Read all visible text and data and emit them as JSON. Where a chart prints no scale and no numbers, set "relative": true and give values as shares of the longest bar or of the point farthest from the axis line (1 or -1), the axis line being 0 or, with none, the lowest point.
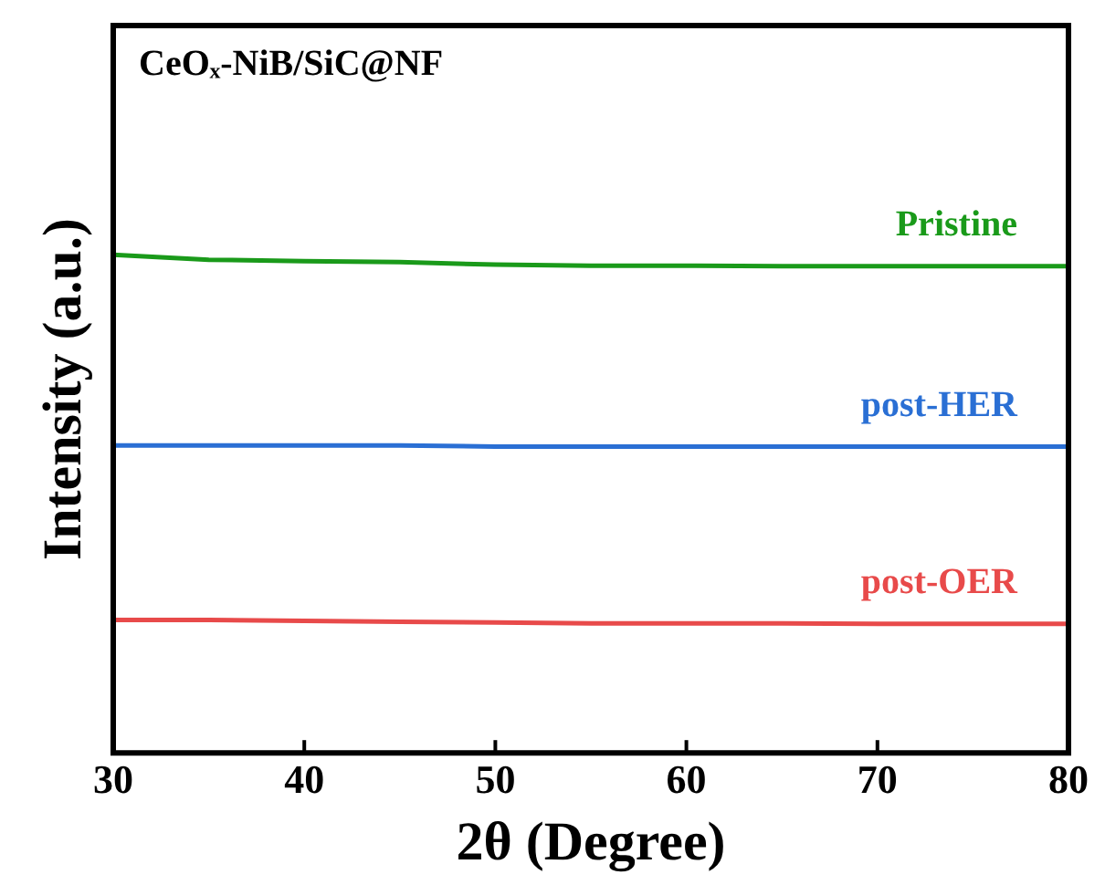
{
  "chart_data": {
    "type": "line",
    "xlabel": "2θ (Degree)",
    "ylabel": "Intensity (a.u.)",
    "relative": true,
    "x": [
      30,
      35,
      40,
      45,
      50,
      55,
      60,
      65,
      70,
      75,
      80
    ],
    "series": [
      {
        "name": "Pristine",
        "color": "#1a9a1a",
        "values": [
          1.0,
          0.99,
          0.987,
          0.985,
          0.98,
          0.978,
          0.978,
          0.977,
          0.977,
          0.977,
          0.977
        ]
      },
      {
        "name": "post-HER",
        "color": "#2a6fd4",
        "values": [
          0.617,
          0.617,
          0.617,
          0.617,
          0.615,
          0.615,
          0.615,
          0.615,
          0.615,
          0.615,
          0.615
        ]
      },
      {
        "name": "post-OER",
        "color": "#e84a4a",
        "values": [
          0.267,
          0.267,
          0.265,
          0.263,
          0.262,
          0.26,
          0.26,
          0.26,
          0.259,
          0.259,
          0.259
        ]
      }
    ],
    "xlim": [
      30,
      80
    ],
    "xticks": [
      30,
      40,
      50,
      60,
      70,
      80
    ],
    "annotations": [
      "CeOₓ-NiB/SiC@NF"
    ],
    "legend": false,
    "grid": false,
    "marker": "none",
    "line_style": "solid"
  }
}
